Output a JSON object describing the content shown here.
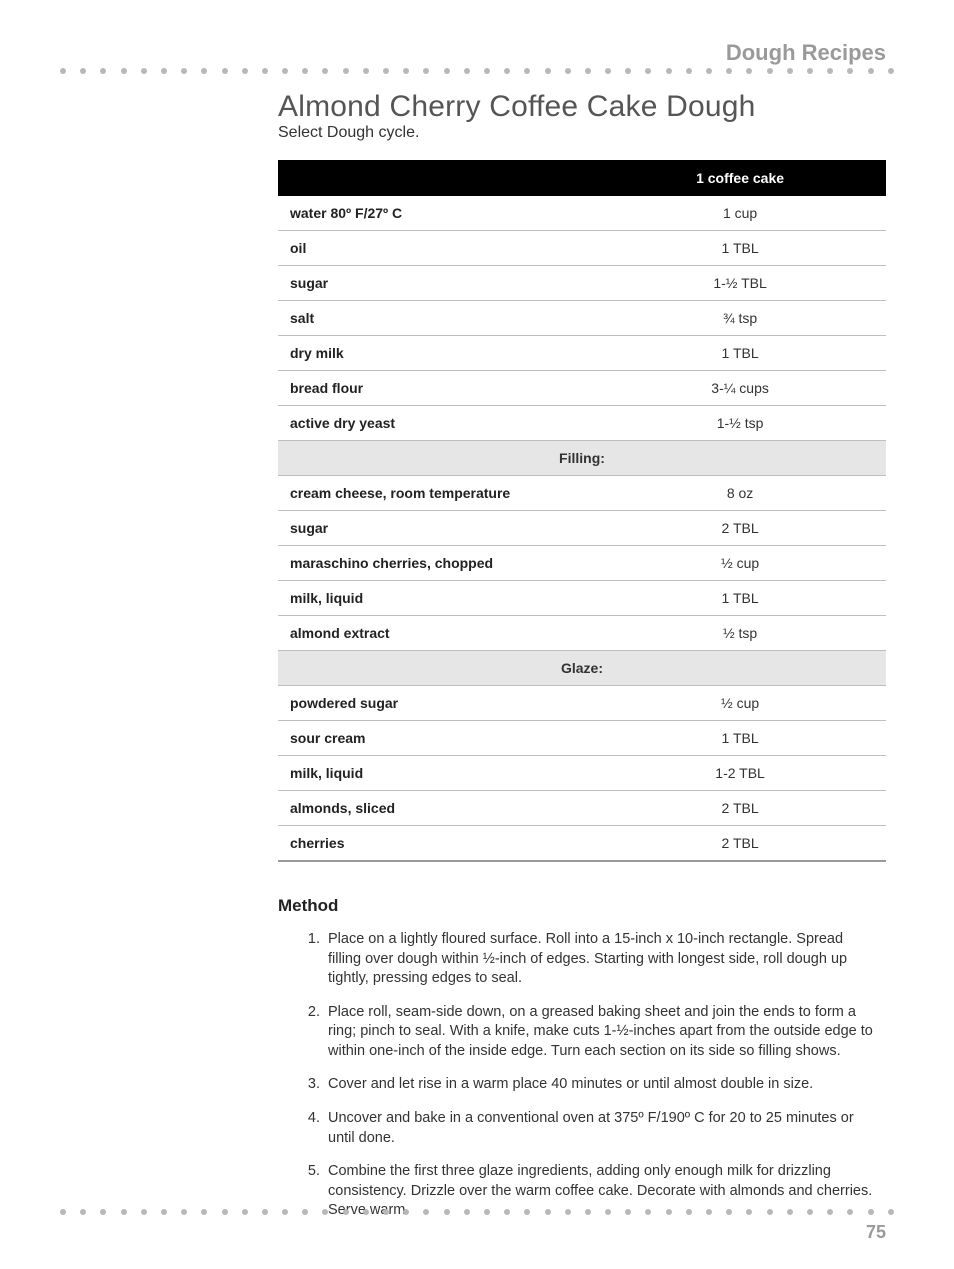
{
  "section_header": "Dough Recipes",
  "recipe": {
    "title": "Almond Cherry Coffee Cake Dough",
    "subtitle": "Select Dough cycle."
  },
  "table": {
    "header_left": "",
    "header_right": "1 coffee cake",
    "rows": [
      {
        "type": "item",
        "name": "water 80º F/27º C",
        "amount": "1 cup"
      },
      {
        "type": "item",
        "name": "oil",
        "amount": "1 TBL"
      },
      {
        "type": "item",
        "name": "sugar",
        "amount": "1-½ TBL"
      },
      {
        "type": "item",
        "name": "salt",
        "amount": "¾ tsp"
      },
      {
        "type": "item",
        "name": "dry milk",
        "amount": "1 TBL"
      },
      {
        "type": "item",
        "name": "bread flour",
        "amount": "3-¼ cups"
      },
      {
        "type": "item",
        "name": "active dry yeast",
        "amount": "1-½ tsp"
      },
      {
        "type": "section",
        "name": "Filling:"
      },
      {
        "type": "item",
        "name": "cream cheese, room temperature",
        "amount": "8 oz"
      },
      {
        "type": "item",
        "name": "sugar",
        "amount": "2 TBL"
      },
      {
        "type": "item",
        "name": "maraschino cherries, chopped",
        "amount": "½ cup"
      },
      {
        "type": "item",
        "name": "milk, liquid",
        "amount": "1 TBL"
      },
      {
        "type": "item",
        "name": "almond extract",
        "amount": "½ tsp"
      },
      {
        "type": "section",
        "name": "Glaze:"
      },
      {
        "type": "item",
        "name": "powdered sugar",
        "amount": "½ cup"
      },
      {
        "type": "item",
        "name": "sour cream",
        "amount": "1 TBL"
      },
      {
        "type": "item",
        "name": "milk, liquid",
        "amount": "1-2 TBL"
      },
      {
        "type": "item",
        "name": "almonds, sliced",
        "amount": "2 TBL"
      },
      {
        "type": "item",
        "name": "cherries",
        "amount": "2 TBL"
      }
    ]
  },
  "method": {
    "heading": "Method",
    "steps": [
      "Place on a lightly floured surface. Roll into a 15-inch x 10-inch rectangle. Spread filling over dough within ½-inch of edges. Starting with longest side, roll dough up tightly, pressing edges to seal.",
      "Place roll, seam-side down, on a greased baking sheet and join the ends to form a ring; pinch to seal. With a knife, make cuts 1-½-inches apart from the outside edge to within one-inch of the inside edge. Turn each section on its side so filling shows.",
      "Cover and let rise in a warm place 40 minutes or until almost double in size.",
      "Uncover and bake in a conventional oven at 375º F/190º C for 20 to 25 minutes or until done.",
      "Combine the first three glaze ingredients, adding only enough milk for drizzling consistency. Drizzle over the warm coffee cake. Decorate with almonds and cherries. Serve warm."
    ]
  },
  "page_number": "75",
  "style": {
    "dot_count": 42,
    "dot_color": "#b8b8b8",
    "header_text_color": "#9a9a9a",
    "table_header_bg": "#000000",
    "table_header_fg": "#ffffff",
    "section_row_bg": "#e6e6e6",
    "row_border_color": "#bfbfbf"
  }
}
